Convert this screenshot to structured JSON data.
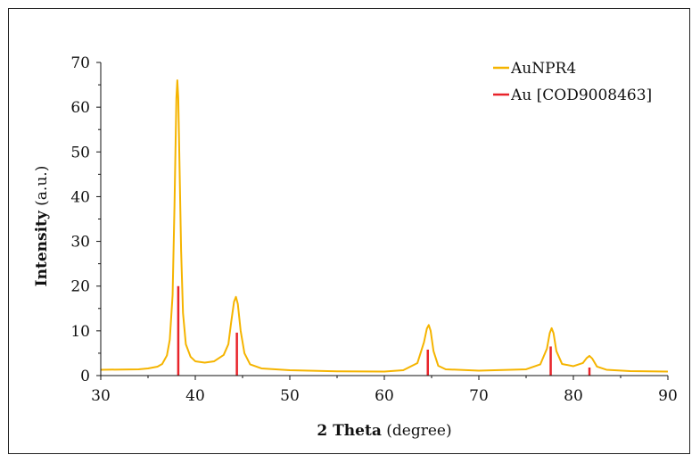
{
  "chart_data": {
    "type": "line",
    "title": "",
    "xlabel_bold": "2 Theta",
    "xlabel_rest": " (degree)",
    "ylabel_bold": "Intensity",
    "ylabel_rest": " (a.u.)",
    "xlim": [
      30,
      90
    ],
    "ylim": [
      0,
      70
    ],
    "x_ticks": [
      "30",
      "40",
      "50",
      "60",
      "70",
      "80",
      "90"
    ],
    "y_ticks": [
      "0",
      "10",
      "20",
      "30",
      "40",
      "50",
      "60",
      "70"
    ],
    "grid": false,
    "legend_position": "top-right",
    "series": [
      {
        "name": "AuNPR4",
        "kind": "line",
        "color": "#f5b400",
        "x": [
          30,
          34,
          35,
          36,
          36.5,
          37,
          37.3,
          37.6,
          37.8,
          38,
          38.1,
          38.2,
          38.35,
          38.5,
          38.7,
          39,
          39.5,
          40,
          41,
          42,
          43,
          43.5,
          43.8,
          44.1,
          44.3,
          44.5,
          44.8,
          45.2,
          45.8,
          47,
          50,
          55,
          60,
          62,
          63.5,
          64.2,
          64.5,
          64.7,
          64.9,
          65.2,
          65.7,
          66.5,
          70,
          75,
          76.5,
          77.2,
          77.5,
          77.7,
          77.9,
          78.2,
          78.8,
          80,
          81,
          81.4,
          81.7,
          82,
          82.5,
          83.5,
          86,
          90
        ],
        "y": [
          1.3,
          1.4,
          1.6,
          2.0,
          2.6,
          4.5,
          8,
          18,
          38,
          62,
          66,
          62,
          45,
          28,
          14,
          7,
          4.2,
          3.2,
          2.9,
          3.2,
          4.6,
          7,
          12,
          16.5,
          17.6,
          16,
          10,
          5,
          2.5,
          1.6,
          1.2,
          0.95,
          0.9,
          1.2,
          2.8,
          7.5,
          10.5,
          11.3,
          10,
          5.5,
          2.2,
          1.4,
          1.1,
          1.4,
          2.5,
          6,
          9.5,
          10.6,
          9.5,
          5.5,
          2.6,
          2.1,
          2.8,
          3.9,
          4.4,
          3.8,
          2.0,
          1.3,
          1.0,
          0.9
        ]
      },
      {
        "name": "Au [COD9008463]",
        "kind": "stick",
        "color": "#e8232a",
        "x": [
          38.2,
          44.4,
          64.6,
          77.6,
          81.7
        ],
        "y": [
          20,
          9.6,
          5.8,
          6.5,
          1.8
        ]
      }
    ]
  }
}
